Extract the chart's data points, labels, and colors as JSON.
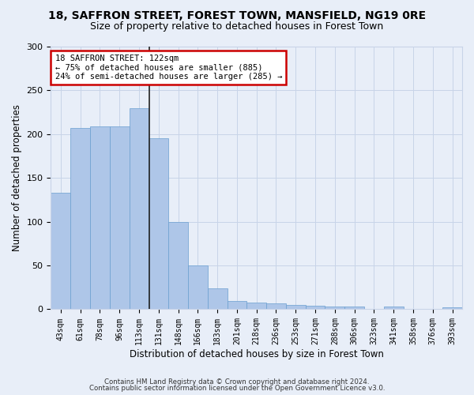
{
  "title1": "18, SAFFRON STREET, FOREST TOWN, MANSFIELD, NG19 0RE",
  "title2": "Size of property relative to detached houses in Forest Town",
  "xlabel": "Distribution of detached houses by size in Forest Town",
  "ylabel": "Number of detached properties",
  "categories": [
    "43sqm",
    "61sqm",
    "78sqm",
    "96sqm",
    "113sqm",
    "131sqm",
    "148sqm",
    "166sqm",
    "183sqm",
    "201sqm",
    "218sqm",
    "236sqm",
    "253sqm",
    "271sqm",
    "288sqm",
    "306sqm",
    "323sqm",
    "341sqm",
    "358sqm",
    "376sqm",
    "393sqm"
  ],
  "values": [
    133,
    207,
    209,
    209,
    230,
    195,
    100,
    50,
    24,
    9,
    8,
    7,
    5,
    4,
    3,
    3,
    0,
    3,
    0,
    0,
    2
  ],
  "bar_color": "#aec6e8",
  "bar_edge_color": "#6a9fd0",
  "ylim": [
    0,
    300
  ],
  "yticks": [
    0,
    50,
    100,
    150,
    200,
    250,
    300
  ],
  "vline_x": 4.52,
  "vline_color": "#222222",
  "annotation_line1": "18 SAFFRON STREET: 122sqm",
  "annotation_line2": "← 75% of detached houses are smaller (885)",
  "annotation_line3": "24% of semi-detached houses are larger (285) →",
  "annotation_box_color": "#ffffff",
  "annotation_box_edge": "#cc0000",
  "footer1": "Contains HM Land Registry data © Crown copyright and database right 2024.",
  "footer2": "Contains public sector information licensed under the Open Government Licence v3.0.",
  "bg_color": "#e8eef8",
  "title_fontsize": 10,
  "subtitle_fontsize": 9,
  "axis_label_fontsize": 8.5,
  "tick_fontsize": 8
}
